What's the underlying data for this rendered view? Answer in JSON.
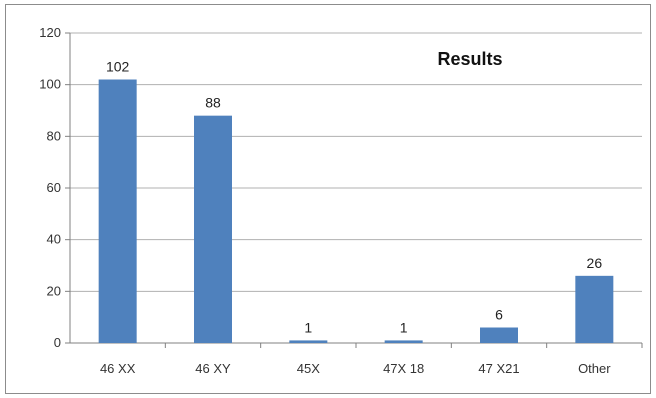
{
  "chart_data": {
    "type": "bar",
    "title": "Results",
    "categories": [
      "46 XX",
      "46 XY",
      "45X",
      "47X 18",
      "47 X21",
      "Other"
    ],
    "values": [
      102,
      88,
      1,
      1,
      6,
      26
    ],
    "data_labels": [
      "102",
      "88",
      "1",
      "1",
      "6",
      "26"
    ],
    "ylim": [
      0,
      120
    ],
    "yticks": [
      "0",
      "20",
      "40",
      "60",
      "80",
      "100",
      "120"
    ],
    "grid": true,
    "legend": "none",
    "colors": {
      "bar": "#4f81bd",
      "grid": "#b0b0b0",
      "axis": "#808080"
    }
  }
}
